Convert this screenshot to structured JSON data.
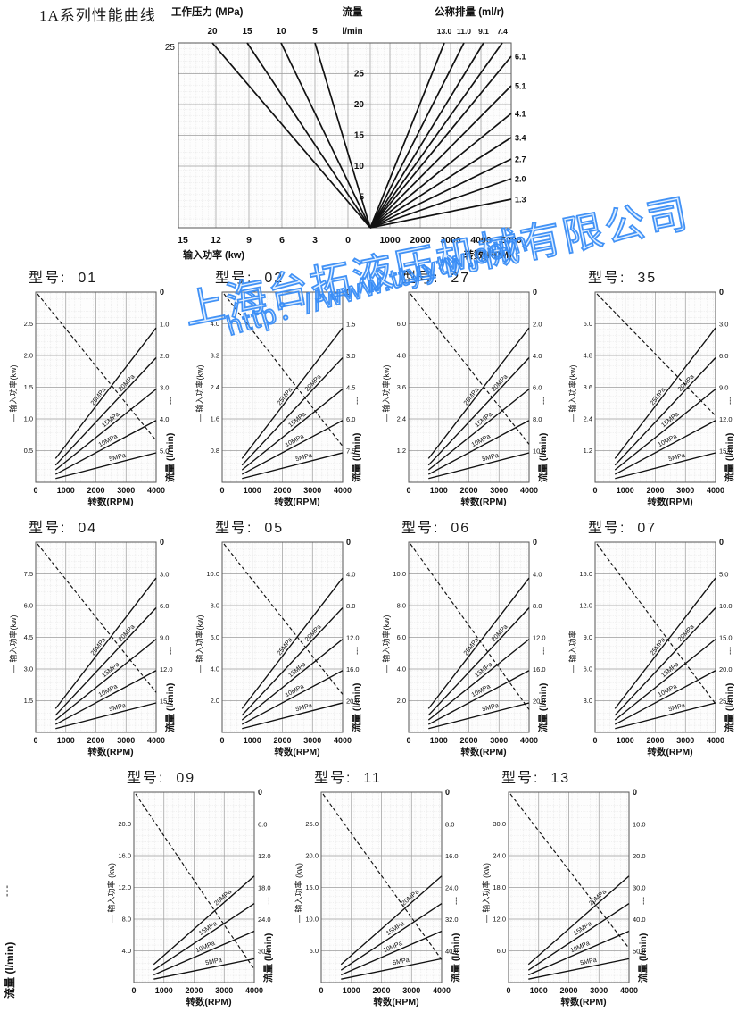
{
  "page": {
    "title": "1A系列性能曲线"
  },
  "watermark": {
    "line1": "上海台拓液压机械有限公司",
    "line2": "http：//www.ttyytw.com",
    "color": "#3d8ef0"
  },
  "stray_label": {
    "dashes": "---",
    "flow": "流量 (l/min)"
  },
  "chart_data": [
    {
      "id": "nomograph",
      "type": "line",
      "description": "1A series pump performance nomograph",
      "pressure_axis": {
        "label": "工作压力 (MPa)",
        "ticks": [
          "20",
          "15",
          "10",
          "5"
        ]
      },
      "flow_axis": {
        "label": "流量",
        "unit": "l/min",
        "top_value": "25",
        "ticks": [
          "25",
          "20",
          "15",
          "10",
          "5"
        ]
      },
      "displacement_axis": {
        "label": "公称排量 (ml/r)",
        "top_ticks": [
          "13.0",
          "11.0",
          "9.1",
          "7.4"
        ],
        "right_ticks": [
          "6.1",
          "5.1",
          "4.1",
          "3.4",
          "2.7",
          "2.0",
          "1.3"
        ]
      },
      "power_axis": {
        "label": "输入功率 (kw)",
        "ticks": [
          "15",
          "12",
          "9",
          "6",
          "3",
          "0"
        ]
      },
      "speed_axis": {
        "label": "转数(RPM)",
        "ticks": [
          "1000",
          "2000",
          "3000",
          "4000",
          "5000"
        ]
      }
    },
    {
      "id": "01",
      "type": "line",
      "title": "型号:  01",
      "power_axis": {
        "label": "— 输入功率(kw)",
        "ticks": [
          "2.5",
          "2.0",
          "1.5",
          "1.0",
          "0.5"
        ]
      },
      "flow_axis": {
        "label": "流量 (l/min)",
        "legend": "---",
        "ticks": [
          "0",
          "1.0",
          "2.0",
          "3.0",
          "4.0",
          "5.0"
        ]
      },
      "speed_axis": {
        "label": "转数(RPM)",
        "ticks": [
          "0",
          "1000",
          "2000",
          "3000",
          "4000"
        ]
      },
      "pressure_lines": [
        "25MPa",
        "20MPa",
        "15MPa",
        "10MPa",
        "5MPa"
      ],
      "dash_end_frac": 0.78
    },
    {
      "id": "02",
      "type": "line",
      "title": "型号:  02",
      "power_axis": {
        "label": "— 输入功率(kw)",
        "ticks": [
          "4.0",
          "3.2",
          "2.4",
          "1.6",
          "0.8"
        ]
      },
      "flow_axis": {
        "label": "流量 (l/min)",
        "legend": "---",
        "ticks": [
          "0",
          "1.5",
          "3.0",
          "4.5",
          "6.0",
          "7.5"
        ]
      },
      "speed_axis": {
        "label": "转数(RPM)",
        "ticks": [
          "0",
          "1000",
          "2000",
          "3000",
          "4000"
        ]
      },
      "pressure_lines": [
        "25MPa",
        "20MPa",
        "15MPa",
        "10MPa",
        "5MPa"
      ],
      "dash_end_frac": 0.81
    },
    {
      "id": "27",
      "type": "line",
      "title": "型号:  27",
      "power_axis": {
        "label": "— 输入功率(kw)",
        "ticks": [
          "6.0",
          "4.8",
          "3.6",
          "2.4",
          "1.2"
        ]
      },
      "flow_axis": {
        "label": "流量 (l/min)",
        "legend": "---",
        "ticks": [
          "0",
          "2.0",
          "4.0",
          "6.0",
          "8.0",
          "10.0"
        ]
      },
      "speed_axis": {
        "label": "转数(RPM)",
        "ticks": [
          "0",
          "1000",
          "2000",
          "3000",
          "4000"
        ]
      },
      "pressure_lines": [
        "25MPa",
        "20MPa",
        "15MPa",
        "10MPa",
        "5MPa"
      ],
      "dash_end_frac": 0.8
    },
    {
      "id": "35",
      "type": "line",
      "title": "型号:  35",
      "power_axis": {
        "label": "— 输入功率(kw)",
        "ticks": [
          "6.0",
          "4.8",
          "3.6",
          "2.4",
          "1.2"
        ]
      },
      "flow_axis": {
        "label": "流量 (l/min)",
        "legend": "---",
        "ticks": [
          "0",
          "3.0",
          "6.0",
          "9.0",
          "12.0",
          "15.0"
        ]
      },
      "speed_axis": {
        "label": "转数(RPM)",
        "ticks": [
          "0",
          "1000",
          "2000",
          "3000",
          "4000"
        ]
      },
      "pressure_lines": [
        "25MPa",
        "20MPa",
        "15MPa",
        "10MPa",
        "5MPa"
      ],
      "dash_end_frac": 0.65
    },
    {
      "id": "04",
      "type": "line",
      "title": "型号:  04",
      "power_axis": {
        "label": "— 输入功率(kw)",
        "ticks": [
          "7.5",
          "6.0",
          "4.5",
          "3.0",
          "1.5"
        ]
      },
      "flow_axis": {
        "label": "流量 (l/min)",
        "legend": "---",
        "ticks": [
          "0",
          "3.0",
          "6.0",
          "9.0",
          "12.0",
          "15.0"
        ]
      },
      "speed_axis": {
        "label": "转数(RPM)",
        "ticks": [
          "0",
          "1000",
          "2000",
          "3000",
          "4000"
        ]
      },
      "pressure_lines": [
        "25MPa",
        "20MPa",
        "15MPa",
        "10MPa",
        "5MPa"
      ],
      "dash_end_frac": 0.79
    },
    {
      "id": "05",
      "type": "line",
      "title": "型号:  05",
      "power_axis": {
        "label": "— 输入功率(kw)",
        "ticks": [
          "10.0",
          "8.0",
          "6.0",
          "4.0",
          "2.0"
        ]
      },
      "flow_axis": {
        "label": "流量 (l/min)",
        "legend": "---",
        "ticks": [
          "0",
          "4.0",
          "8.0",
          "12.0",
          "16.0",
          "20.0"
        ]
      },
      "speed_axis": {
        "label": "转数(RPM)",
        "ticks": [
          "0",
          "1000",
          "2000",
          "3000",
          "4000"
        ]
      },
      "pressure_lines": [
        "25MPa",
        "20MPa",
        "15MPa",
        "10MPa",
        "5MPa"
      ],
      "dash_end_frac": 0.8
    },
    {
      "id": "06",
      "type": "line",
      "title": "型号:  06",
      "power_axis": {
        "label": "— 输入功率(kw)",
        "ticks": [
          "10.0",
          "8.0",
          "6.0",
          "4.0",
          "2.0"
        ]
      },
      "flow_axis": {
        "label": "流量 (l/min)",
        "legend": "---",
        "ticks": [
          "0",
          "4.0",
          "8.0",
          "12.0",
          "16.0",
          "20.0"
        ]
      },
      "speed_axis": {
        "label": "转数(RPM)",
        "ticks": [
          "0",
          "1000",
          "2000",
          "3000",
          "4000"
        ]
      },
      "pressure_lines": [
        "25MPa",
        "20MPa",
        "15MPa",
        "10MPa",
        "5MPa"
      ],
      "dash_end_frac": 0.88
    },
    {
      "id": "07",
      "type": "line",
      "title": "型号:  07",
      "power_axis": {
        "label": "— 输入功率",
        "ticks": [
          "15.0",
          "12.0",
          "9.0",
          "6.0",
          "3.0"
        ]
      },
      "flow_axis": {
        "label": "流量 (l/min)",
        "legend": "---",
        "ticks": [
          "0",
          "5.0",
          "10.0",
          "15.0",
          "20.0",
          "25.0"
        ]
      },
      "speed_axis": {
        "label": "转数(RPM)",
        "ticks": [
          "0",
          "1000",
          "2000",
          "3000",
          "4000"
        ]
      },
      "pressure_lines": [
        "25MPa",
        "20MPa",
        "15MPa",
        "10MPa",
        "5MPa"
      ],
      "dash_end_frac": 0.85
    },
    {
      "id": "09",
      "type": "line",
      "title": "型号:  09",
      "power_axis": {
        "label": "— 输入功率 (kw)",
        "ticks": [
          "20.0",
          "16.0",
          "12.0",
          "8.0",
          "4.0"
        ]
      },
      "flow_axis": {
        "label": "流量 (l/min)",
        "legend": "---",
        "ticks": [
          "0",
          "6.0",
          "12.0",
          "18.0",
          "24.0",
          "30.0"
        ]
      },
      "speed_axis": {
        "label": "转数(RPM)",
        "ticks": [
          "0",
          "1000",
          "2000",
          "3000",
          "4000"
        ]
      },
      "pressure_lines": [
        "20MPa",
        "15MPa",
        "10MPa",
        "5MPa"
      ],
      "dash_end_frac": 0.93
    },
    {
      "id": "11",
      "type": "line",
      "title": "型号:  11",
      "power_axis": {
        "label": "— 输入功率 (kw)",
        "ticks": [
          "25.0",
          "20.0",
          "15.0",
          "10.0",
          "5.0"
        ]
      },
      "flow_axis": {
        "label": "流量 (l/min)",
        "legend": "---",
        "ticks": [
          "0",
          "8.0",
          "16.0",
          "24.0",
          "32.0",
          "40.0"
        ]
      },
      "speed_axis": {
        "label": "转数(RPM)",
        "ticks": [
          "0",
          "1000",
          "2000",
          "3000",
          "4000"
        ]
      },
      "pressure_lines": [
        "20MPa",
        "15MPa",
        "10MPa",
        "5MPa"
      ],
      "dash_end_frac": 0.88
    },
    {
      "id": "13",
      "type": "line",
      "title": "型号:  13",
      "power_axis": {
        "label": "— 输入功率 (kw)",
        "ticks": [
          "30.0",
          "24.0",
          "18.0",
          "12.0",
          "6.0"
        ]
      },
      "flow_axis": {
        "label": "流量 (l/min)",
        "legend": "---",
        "ticks": [
          "0",
          "10.0",
          "20.0",
          "30.0",
          "40.0",
          "50.0"
        ]
      },
      "speed_axis": {
        "label": "转数(RPM)",
        "ticks": [
          "0",
          "1000",
          "2000",
          "3000",
          "4000"
        ]
      },
      "pressure_lines": [
        "20MPa",
        "15MPa",
        "10MPa",
        "5MPa"
      ],
      "dash_end_frac": 0.82
    }
  ]
}
